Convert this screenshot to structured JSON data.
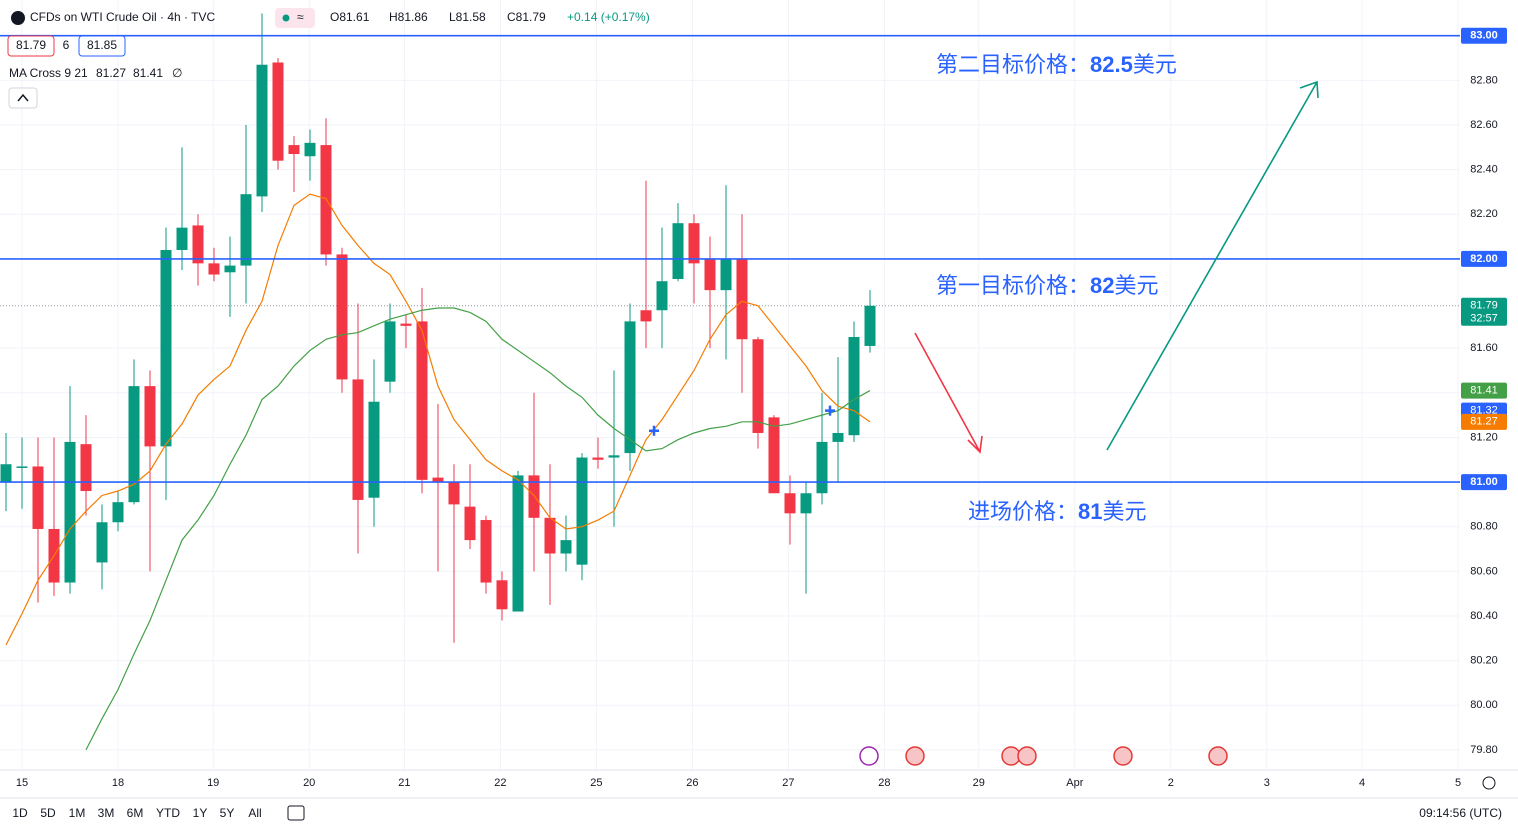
{
  "chart_data": {
    "type": "candlestick",
    "title": "CFDs on WTI Crude Oil · 4h · TVC",
    "ohlc_legend": [
      "O81.61",
      "H81.86",
      "L81.58",
      "C81.79",
      "+0.14 (+0.17%)"
    ],
    "quote_boxes": [
      "81.79",
      "6",
      "81.85"
    ],
    "indicator": {
      "name": "MA Cross 9 21",
      "labels": [
        "81.27",
        "81.41"
      ],
      "symbol": "∅"
    },
    "up_color": "#089981",
    "down_color": "#f23645",
    "open": [
      81.0,
      81.07,
      81.07,
      80.79,
      80.55,
      81.17,
      80.64,
      80.82,
      80.91,
      81.43,
      81.16,
      82.04,
      82.15,
      81.98,
      81.94,
      81.97,
      82.28,
      82.88,
      82.51,
      82.46,
      82.51,
      82.02,
      81.46,
      80.93,
      81.45,
      81.71,
      81.72,
      81.02,
      81.0,
      80.89,
      80.83,
      80.56,
      80.42,
      81.03,
      80.84,
      80.68,
      80.63,
      81.11,
      81.11,
      81.13,
      81.77,
      81.77,
      81.91,
      82.16,
      82.0,
      81.86,
      82.0,
      81.64,
      81.29,
      80.95,
      80.86,
      80.95,
      81.18,
      81.21,
      81.61
    ],
    "high": [
      81.22,
      81.2,
      81.2,
      81.2,
      81.43,
      81.3,
      80.9,
      80.96,
      81.55,
      81.5,
      82.14,
      82.5,
      82.2,
      82.05,
      82.1,
      82.6,
      83.1,
      82.9,
      82.55,
      82.58,
      82.63,
      82.05,
      81.8,
      81.55,
      81.8,
      81.75,
      81.87,
      81.35,
      81.08,
      81.08,
      80.85,
      80.6,
      81.05,
      81.4,
      81.08,
      80.85,
      81.13,
      81.2,
      81.5,
      81.8,
      82.35,
      82.14,
      82.25,
      82.2,
      82.1,
      82.33,
      82.2,
      81.65,
      81.3,
      81.03,
      81.0,
      81.4,
      81.56,
      81.72,
      81.86
    ],
    "low": [
      80.87,
      80.88,
      80.46,
      80.49,
      80.5,
      80.85,
      80.52,
      80.78,
      80.9,
      80.6,
      80.92,
      81.95,
      81.88,
      81.9,
      81.74,
      81.8,
      82.21,
      82.4,
      82.3,
      82.35,
      81.97,
      81.4,
      80.68,
      80.8,
      81.4,
      81.6,
      80.95,
      80.6,
      80.28,
      80.7,
      80.5,
      80.38,
      80.42,
      80.6,
      80.45,
      80.6,
      80.56,
      81.06,
      80.8,
      81.05,
      81.6,
      81.6,
      81.9,
      81.8,
      81.6,
      81.55,
      81.4,
      81.15,
      80.95,
      80.72,
      80.5,
      80.9,
      81.0,
      81.18,
      81.58
    ],
    "close": [
      81.08,
      81.07,
      80.79,
      80.55,
      81.18,
      80.96,
      80.82,
      80.91,
      81.43,
      81.16,
      82.04,
      82.14,
      81.98,
      81.93,
      81.97,
      82.29,
      82.87,
      82.44,
      82.47,
      82.52,
      82.02,
      81.46,
      80.92,
      81.36,
      81.72,
      81.7,
      81.01,
      81.0,
      80.9,
      80.74,
      80.55,
      80.43,
      81.03,
      80.84,
      80.68,
      80.74,
      81.11,
      81.1,
      81.12,
      81.72,
      81.72,
      81.9,
      82.16,
      81.98,
      81.86,
      82.0,
      81.64,
      81.22,
      80.95,
      80.86,
      80.95,
      81.18,
      81.22,
      81.65,
      81.79
    ],
    "series": [
      {
        "color": "#f57c00",
        "values": [
          80.27,
          80.41,
          80.56,
          80.67,
          80.79,
          80.87,
          80.94,
          80.96,
          80.99,
          81.05,
          81.17,
          81.26,
          81.39,
          81.46,
          81.52,
          81.68,
          81.81,
          82.06,
          82.24,
          82.29,
          82.27,
          82.15,
          82.06,
          81.98,
          81.93,
          81.81,
          81.68,
          81.43,
          81.28,
          81.19,
          81.1,
          81.05,
          81.01,
          80.94,
          80.84,
          80.79,
          80.8,
          80.83,
          80.87,
          81.03,
          81.19,
          81.28,
          81.39,
          81.5,
          81.64,
          81.75,
          81.81,
          81.79,
          81.7,
          81.61,
          81.52,
          81.41,
          81.34,
          81.32,
          81.27
        ]
      },
      {
        "color": "#43a047",
        "values": [
          null,
          null,
          null,
          null,
          null,
          79.8,
          79.94,
          80.07,
          80.23,
          80.38,
          80.56,
          80.74,
          80.83,
          80.94,
          81.08,
          81.21,
          81.37,
          81.43,
          81.52,
          81.59,
          81.64,
          81.66,
          81.67,
          81.7,
          81.73,
          81.75,
          81.77,
          81.78,
          81.78,
          81.76,
          81.72,
          81.64,
          81.59,
          81.54,
          81.49,
          81.43,
          81.38,
          81.3,
          81.24,
          81.19,
          81.14,
          81.15,
          81.19,
          81.22,
          81.24,
          81.25,
          81.27,
          81.27,
          81.25,
          81.26,
          81.28,
          81.3,
          81.32,
          81.37,
          81.41
        ]
      }
    ],
    "crosses": [
      {
        "x": 40.5,
        "value": 81.23,
        "color": "#2962ff"
      },
      {
        "x": 51.5,
        "value": 81.32,
        "color": "#2962ff"
      }
    ],
    "hlines": [
      {
        "value": 83,
        "label": "83.00"
      },
      {
        "value": 82,
        "label": "82.00"
      },
      {
        "value": 81,
        "label": "81.00"
      }
    ],
    "hline_color": "#2962ff",
    "price_tags": [
      {
        "value": 81.79,
        "label": "81.79",
        "sub": "32:57",
        "color": "#089981"
      },
      {
        "value": 81.41,
        "label": "81.41",
        "color": "#43a047"
      },
      {
        "value": 81.32,
        "label": "81.32",
        "color": "#2962ff"
      },
      {
        "value": 81.27,
        "label": "81.27",
        "color": "#f57c00"
      }
    ],
    "annotations": [
      {
        "text": "第二目标价格：",
        "price": "82.5",
        "unit": "美元"
      },
      {
        "text": "第一目标价格：",
        "price": "82",
        "unit": "美元"
      },
      {
        "text": "进场价格：",
        "price": "81",
        "unit": "美元"
      }
    ],
    "ylim": [
      79.71,
      83.16
    ],
    "yticks": [
      {
        "value": 79.8,
        "label": "79.80"
      },
      {
        "value": 80.0,
        "label": "80.00"
      },
      {
        "value": 80.2,
        "label": "80.20"
      },
      {
        "value": 80.4,
        "label": "80.40"
      },
      {
        "value": 80.6,
        "label": "80.60"
      },
      {
        "value": 80.8,
        "label": "80.80"
      },
      {
        "value": 81.2,
        "label": "81.20"
      },
      {
        "value": 81.4,
        "label": "81.40"
      },
      {
        "value": 81.6,
        "label": "81.60"
      },
      {
        "value": 82.2,
        "label": "82.20"
      },
      {
        "value": 82.4,
        "label": "82.40"
      },
      {
        "value": 82.6,
        "label": "82.60"
      },
      {
        "value": 82.8,
        "label": "82.80"
      }
    ],
    "xlim": [
      -0.375,
      90.875
    ],
    "xticks": [
      {
        "value": 1,
        "label": "15"
      },
      {
        "value": 7,
        "label": "18"
      },
      {
        "value": 12.95,
        "label": "19"
      },
      {
        "value": 18.95,
        "label": "20"
      },
      {
        "value": 24.9,
        "label": "21"
      },
      {
        "value": 30.9,
        "label": "22"
      },
      {
        "value": 36.9,
        "label": "25"
      },
      {
        "value": 42.9,
        "label": "26"
      },
      {
        "value": 48.9,
        "label": "27"
      },
      {
        "value": 54.9,
        "label": "28"
      },
      {
        "value": 60.8,
        "label": "29"
      },
      {
        "value": 66.8,
        "label": "Apr"
      },
      {
        "value": 72.8,
        "label": "2"
      },
      {
        "value": 78.8,
        "label": "3"
      },
      {
        "value": 84.75,
        "label": "4"
      },
      {
        "value": 90.75,
        "label": "5"
      }
    ],
    "grid": true,
    "timeframes": [
      "1D",
      "5D",
      "1M",
      "3M",
      "6M",
      "YTD",
      "1Y",
      "5Y",
      "All"
    ],
    "clock": "09:14:56 (UTC)"
  }
}
